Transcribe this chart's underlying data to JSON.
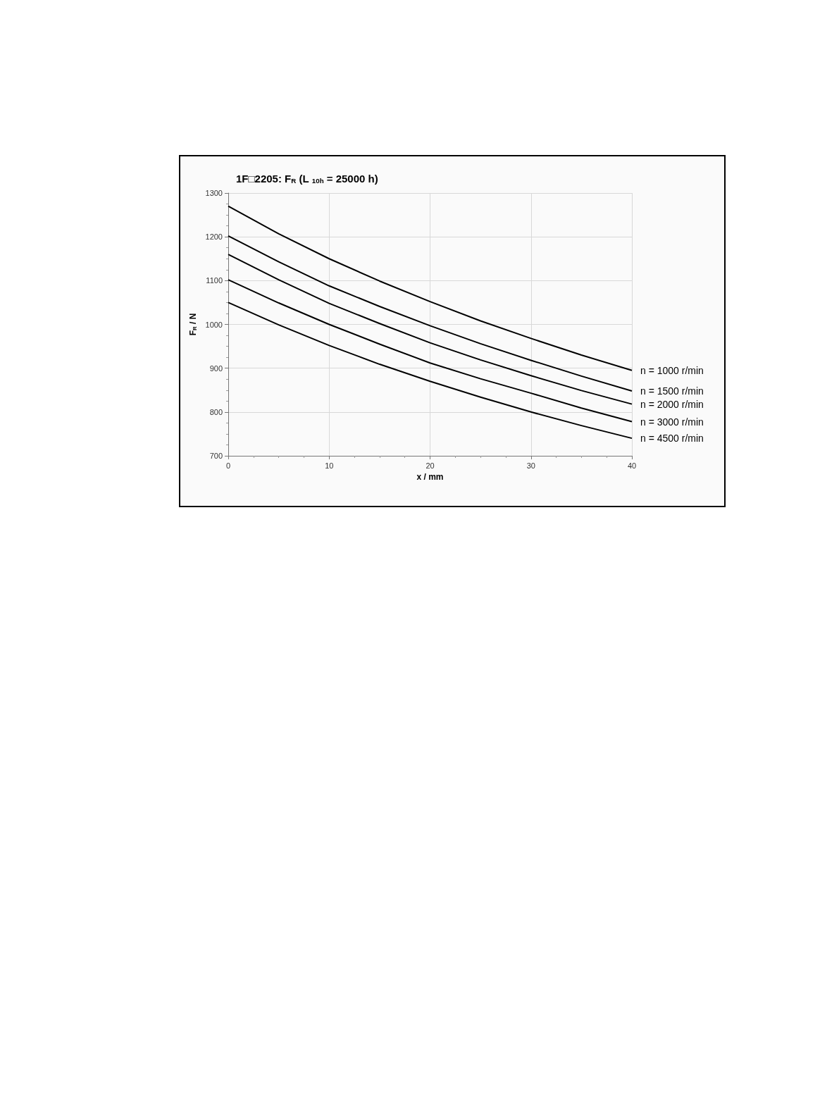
{
  "chart_data": {
    "type": "line",
    "title": "1F□2205: F$_{R}$ (L $_{10h}$ = 25000 h)",
    "xlabel": "x / mm",
    "ylabel": "F$_{R}$ / N",
    "x": [
      0,
      5,
      10,
      15,
      20,
      25,
      30,
      35,
      40
    ],
    "series": [
      {
        "name": "n = 1000 r/min",
        "color": "#000000",
        "values": [
          1270,
          1207,
          1150,
          1099,
          1052,
          1008,
          968,
          930,
          895
        ]
      },
      {
        "name": "n = 1500 r/min",
        "color": "#000000",
        "values": [
          1202,
          1143,
          1088,
          1041,
          997,
          956,
          918,
          882,
          848
        ]
      },
      {
        "name": "n = 2000 r/min",
        "color": "#000000",
        "values": [
          1160,
          1102,
          1048,
          1002,
          958,
          919,
          883,
          849,
          818
        ]
      },
      {
        "name": "n = 3000 r/min",
        "color": "#000000",
        "values": [
          1102,
          1049,
          1000,
          955,
          912,
          876,
          843,
          809,
          778
        ]
      },
      {
        "name": "n = 4500 r/min",
        "color": "#000000",
        "values": [
          1050,
          999,
          952,
          909,
          870,
          834,
          800,
          769,
          740
        ]
      }
    ],
    "xlim": [
      0,
      40
    ],
    "xticks": [
      0,
      10,
      20,
      30,
      40
    ],
    "ylim": [
      700,
      1300
    ],
    "yticks": [
      700,
      800,
      900,
      1000,
      1100,
      1200,
      1300
    ],
    "grid": true,
    "legend": false,
    "marker": "none",
    "line_style": "solid"
  }
}
